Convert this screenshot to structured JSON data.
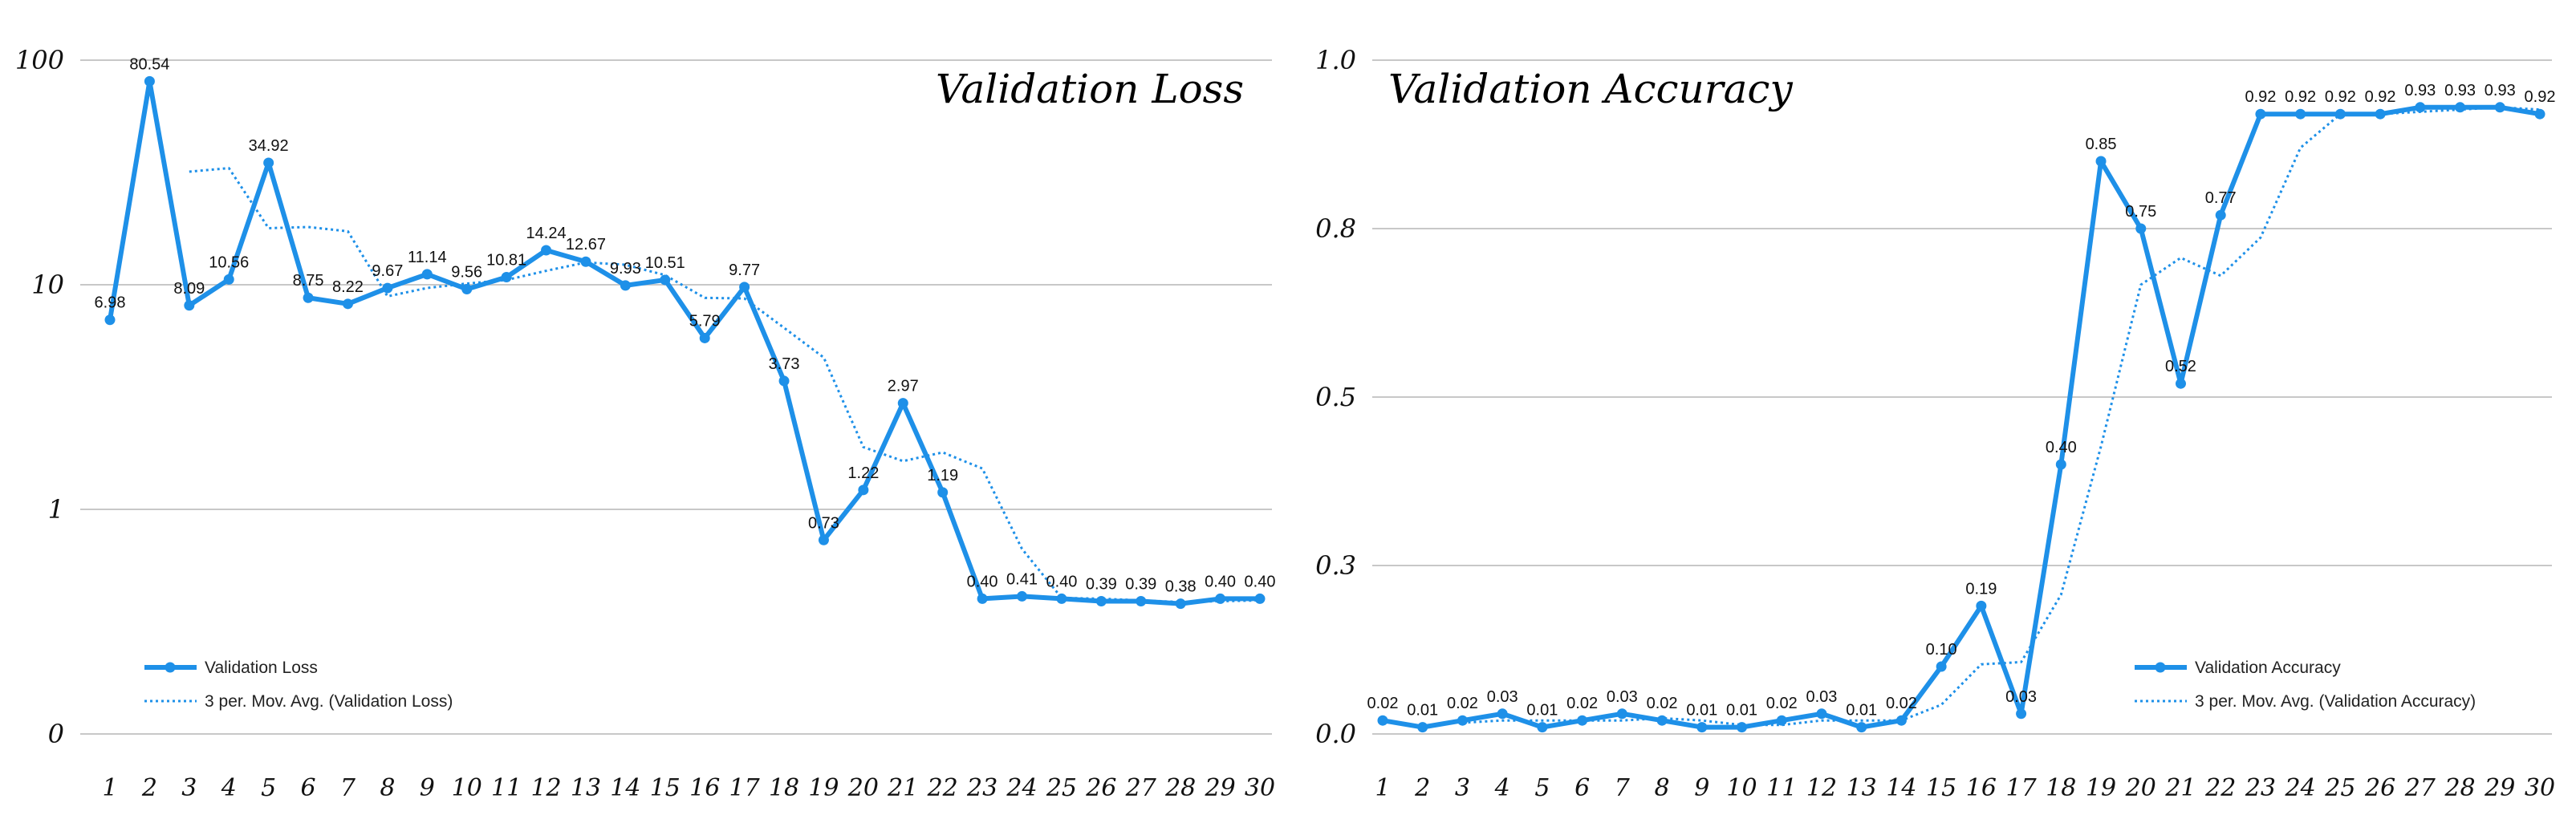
{
  "colors": {
    "series": "#1e90e8",
    "grid": "#c8c8c8",
    "text": "#111111",
    "background": "#ffffff"
  },
  "chart_data": [
    {
      "type": "line",
      "title": "Validation Loss",
      "scale": "log",
      "x": [
        1,
        2,
        3,
        4,
        5,
        6,
        7,
        8,
        9,
        10,
        11,
        12,
        13,
        14,
        15,
        16,
        17,
        18,
        19,
        20,
        21,
        22,
        23,
        24,
        25,
        26,
        27,
        28,
        29,
        30
      ],
      "xlabel": "",
      "ylabel": "",
      "yticks": [
        {
          "value": 0.1,
          "label": "0"
        },
        {
          "value": 1,
          "label": "1"
        },
        {
          "value": 10,
          "label": "10"
        },
        {
          "value": 100,
          "label": "100"
        }
      ],
      "ylim": [
        0.1,
        100
      ],
      "series": [
        {
          "name": "Validation Loss",
          "style": "solid-markers",
          "values": [
            6.98,
            80.54,
            8.09,
            10.56,
            34.92,
            8.75,
            8.22,
            9.67,
            11.14,
            9.56,
            10.81,
            14.24,
            12.67,
            9.93,
            10.51,
            5.79,
            9.77,
            3.73,
            0.73,
            1.22,
            2.97,
            1.19,
            0.4,
            0.41,
            0.4,
            0.39,
            0.39,
            0.38,
            0.4,
            0.4
          ],
          "labels": [
            "6.98",
            "80.54",
            "8.09",
            "10.56",
            "34.92",
            "8.75",
            "8.22",
            "9.67",
            "11.14",
            "9.56",
            "10.81",
            "14.24",
            "12.67",
            "9.93",
            "10.51",
            "5.79",
            "9.77",
            "3.73",
            "0.73",
            "1.22",
            "2.97",
            "1.19",
            "0.40",
            "0.41",
            "0.40",
            "0.39",
            "0.39",
            "0.38",
            "0.40",
            "0.40"
          ]
        },
        {
          "name": "3 per. Mov. Avg. (Validation Loss)",
          "style": "dotted",
          "period": 3
        }
      ],
      "legend": "bottom-left"
    },
    {
      "type": "line",
      "title": "Validation Accuracy",
      "scale": "linear",
      "x": [
        1,
        2,
        3,
        4,
        5,
        6,
        7,
        8,
        9,
        10,
        11,
        12,
        13,
        14,
        15,
        16,
        17,
        18,
        19,
        20,
        21,
        22,
        23,
        24,
        25,
        26,
        27,
        28,
        29,
        30
      ],
      "xlabel": "",
      "ylabel": "",
      "yticks": [
        {
          "value": 0.0,
          "label": "0.0"
        },
        {
          "value": 0.25,
          "label": "0.3"
        },
        {
          "value": 0.5,
          "label": "0.5"
        },
        {
          "value": 0.75,
          "label": "0.8"
        },
        {
          "value": 1.0,
          "label": "1.0"
        }
      ],
      "ylim": [
        0,
        1
      ],
      "series": [
        {
          "name": "Validation Accuracy",
          "style": "solid-markers",
          "values": [
            0.02,
            0.01,
            0.02,
            0.03,
            0.01,
            0.02,
            0.03,
            0.02,
            0.01,
            0.01,
            0.02,
            0.03,
            0.01,
            0.02,
            0.1,
            0.19,
            0.03,
            0.4,
            0.85,
            0.75,
            0.52,
            0.77,
            0.92,
            0.92,
            0.92,
            0.92,
            0.93,
            0.93,
            0.93,
            0.92
          ],
          "labels": [
            "0.02",
            "0.01",
            "0.02",
            "0.03",
            "0.01",
            "0.02",
            "0.03",
            "0.02",
            "0.01",
            "0.01",
            "0.02",
            "0.03",
            "0.01",
            "0.02",
            "0.10",
            "0.19",
            "0.03",
            "0.40",
            "0.85",
            "0.75",
            "0.52",
            "0.77",
            "0.92",
            "0.92",
            "0.92",
            "0.92",
            "0.93",
            "0.93",
            "0.93",
            "0.92"
          ]
        },
        {
          "name": "3 per. Mov. Avg. (Validation Accuracy)",
          "style": "dotted",
          "period": 3
        }
      ],
      "legend": "bottom-right"
    }
  ]
}
